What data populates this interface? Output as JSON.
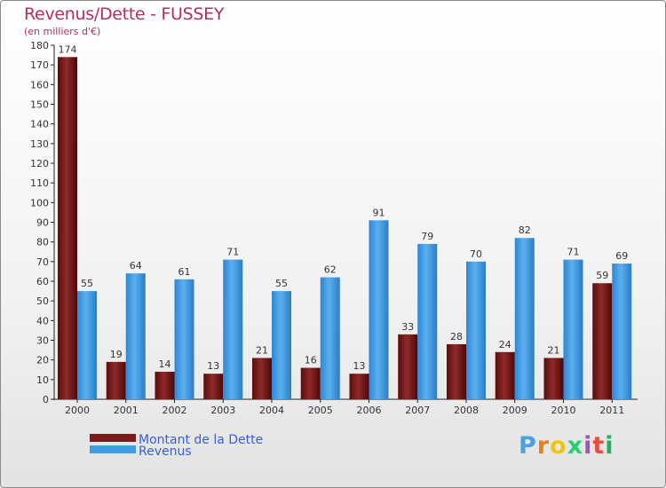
{
  "chart_data": {
    "type": "bar",
    "title": "Revenus/Dette - FUSSEY",
    "subtitle": "(en milliers d'€)",
    "categories": [
      "2000",
      "2001",
      "2002",
      "2003",
      "2004",
      "2005",
      "2006",
      "2007",
      "2008",
      "2009",
      "2010",
      "2011"
    ],
    "series": [
      {
        "name": "Montant de la Dette",
        "color": "#7a1a1a",
        "values": [
          174,
          19,
          14,
          13,
          21,
          16,
          13,
          33,
          28,
          24,
          21,
          59
        ]
      },
      {
        "name": "Revenus",
        "color": "#3f9de6",
        "values": [
          55,
          64,
          61,
          71,
          55,
          62,
          91,
          79,
          70,
          82,
          71,
          69
        ]
      }
    ],
    "ylim": [
      0,
      180
    ],
    "yticks": [
      0,
      10,
      20,
      30,
      40,
      50,
      60,
      70,
      80,
      90,
      100,
      110,
      120,
      130,
      140,
      150,
      160,
      170,
      180
    ],
    "grid": false,
    "legend": "bottom-left",
    "logo": "Proxiti"
  }
}
